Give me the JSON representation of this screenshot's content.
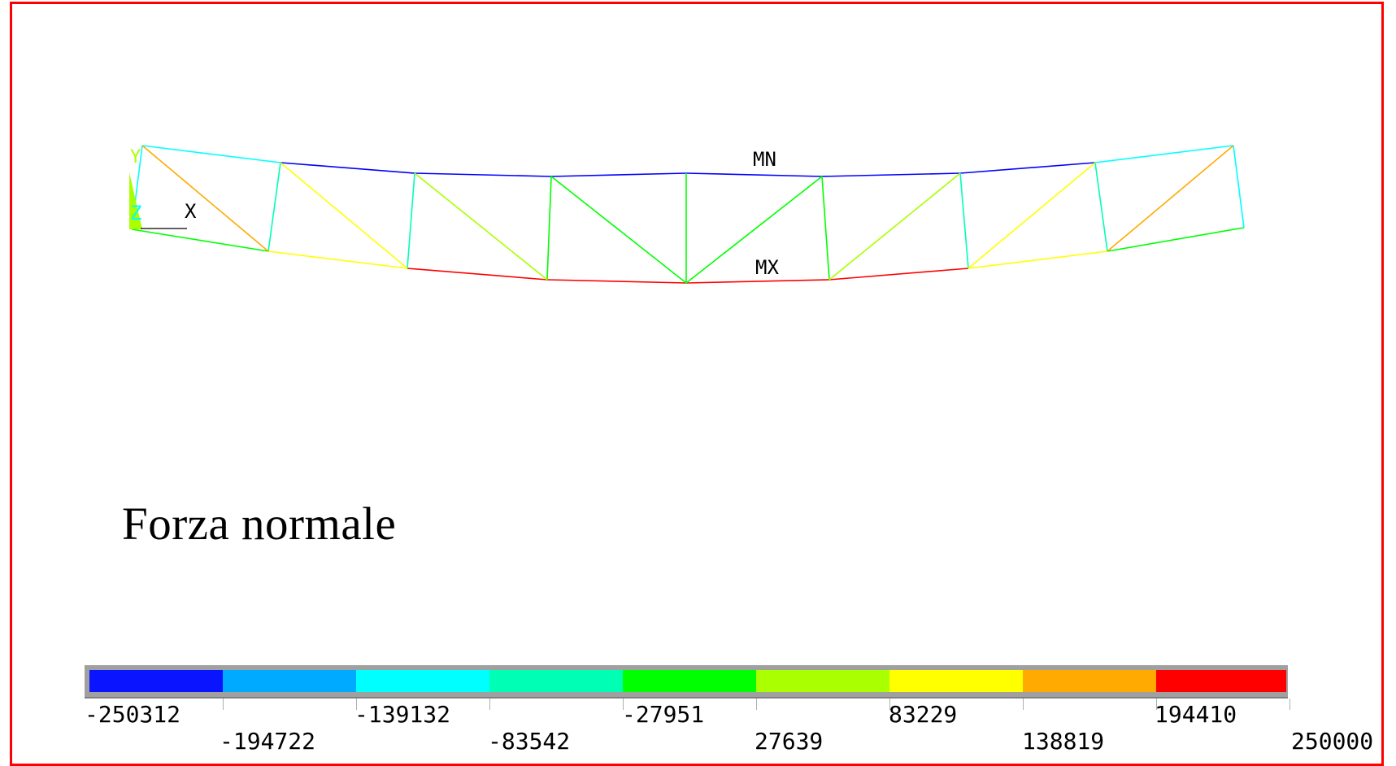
{
  "caption": "Forza normale",
  "labels": {
    "min": "MN",
    "max": "MX"
  },
  "triad": {
    "y": "Y",
    "z": "Z",
    "x": "X"
  },
  "legend": {
    "colors": [
      "#0a14ff",
      "#00aaff",
      "#00ffff",
      "#00ffb4",
      "#00ff00",
      "#aaff00",
      "#ffff00",
      "#ffaa00",
      "#ff0000"
    ],
    "values": [
      "-250312",
      "-194722",
      "-139132",
      "-83542",
      "-27951",
      "27639",
      "83229",
      "138819",
      "194410",
      "250000"
    ]
  },
  "members": {
    "top_chord": "#0000ff",
    "bottom_chord_center": "#ff0000"
  }
}
